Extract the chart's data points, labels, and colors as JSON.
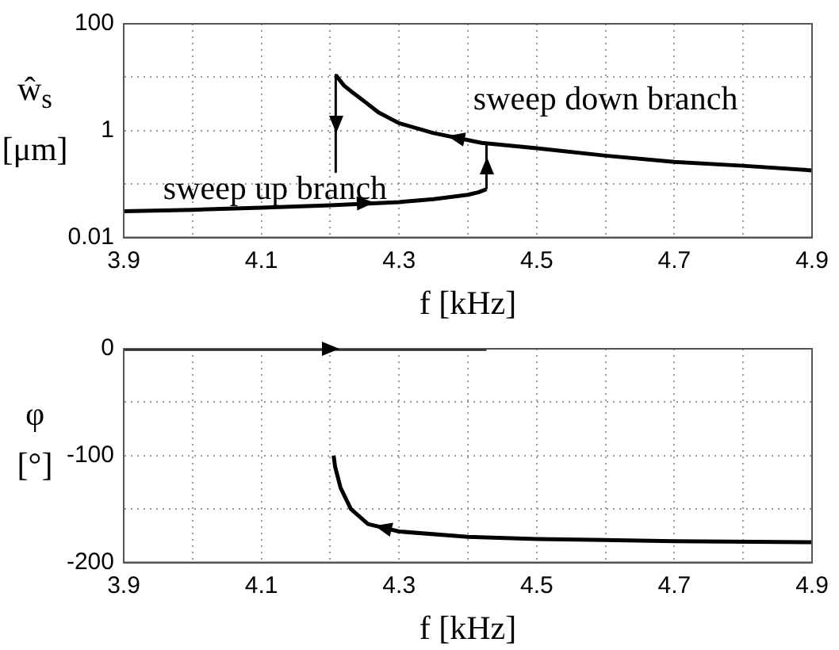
{
  "chart_data": [
    {
      "type": "line",
      "xlabel": "f [kHz]",
      "ylabel": "ŵ$_{s}$ [μm]",
      "log": "y",
      "xlim": [
        3.9,
        4.9
      ],
      "xticks": [
        3.9,
        {
          "value": 4.0,
          "label": null
        },
        4.1,
        {
          "value": 4.2,
          "label": null
        },
        4.3,
        {
          "value": 4.4,
          "label": null
        },
        4.5,
        {
          "value": 4.6,
          "label": null
        },
        4.7,
        {
          "value": 4.8,
          "label": null
        },
        4.9
      ],
      "ylim": [
        0.01,
        100
      ],
      "yticks": [
        0.01,
        {
          "value": 0.1,
          "label": null
        },
        1,
        {
          "value": 10,
          "label": null
        },
        100
      ],
      "grid": true,
      "legend": false,
      "marker": "none",
      "series": [
        {
          "color": "#000000",
          "x": [
            3.9,
            4.0,
            4.1,
            4.2,
            4.3,
            4.35,
            4.4,
            4.415,
            4.427
          ],
          "values": [
            0.031,
            0.033,
            0.036,
            0.04,
            0.046,
            0.052,
            0.063,
            0.07,
            0.08
          ]
        },
        {
          "color": "#000000",
          "x": [
            4.427,
            4.427
          ],
          "values": [
            0.08,
            0.59
          ]
        },
        {
          "color": "#000000",
          "x": [
            4.9,
            4.8,
            4.7,
            4.6,
            4.5,
            4.42,
            4.35,
            4.3,
            4.27,
            4.25,
            4.23,
            4.22,
            4.208
          ],
          "values": [
            0.18,
            0.22,
            0.26,
            0.34,
            0.47,
            0.59,
            0.9,
            1.38,
            2.2,
            3.5,
            5.5,
            7,
            11
          ]
        },
        {
          "color": "#000000",
          "x": [
            4.208,
            4.208
          ],
          "values": [
            11,
            0.17
          ]
        }
      ],
      "annotations": [
        "sweep down branch",
        "sweep up branch"
      ]
    },
    {
      "type": "line",
      "xlabel": "f [kHz]",
      "ylabel": "φ [°]",
      "xlim": [
        3.9,
        4.9
      ],
      "xticks": [
        3.9,
        {
          "value": 4.0,
          "label": null
        },
        4.1,
        {
          "value": 4.2,
          "label": null
        },
        4.3,
        {
          "value": 4.4,
          "label": null
        },
        4.5,
        {
          "value": 4.6,
          "label": null
        },
        4.7,
        {
          "value": 4.8,
          "label": null
        },
        4.9
      ],
      "ylim": [
        -200,
        0
      ],
      "yticks": [
        -200,
        {
          "value": -150,
          "label": null
        },
        -100,
        {
          "value": -50,
          "label": null
        },
        0
      ],
      "grid": true,
      "legend": false,
      "marker": "none",
      "series": [
        {
          "color": "#000000",
          "x": [
            3.9,
            4.1,
            4.3,
            4.427
          ],
          "values": [
            0,
            0,
            0,
            0
          ]
        },
        {
          "color": "#000000",
          "x": [
            4.9,
            4.7,
            4.5,
            4.4,
            4.3,
            4.255,
            4.23,
            4.215,
            4.207,
            4.205
          ],
          "values": [
            -181,
            -180,
            -178,
            -176,
            -171,
            -164,
            -150,
            -130,
            -110,
            -100
          ]
        }
      ]
    }
  ]
}
